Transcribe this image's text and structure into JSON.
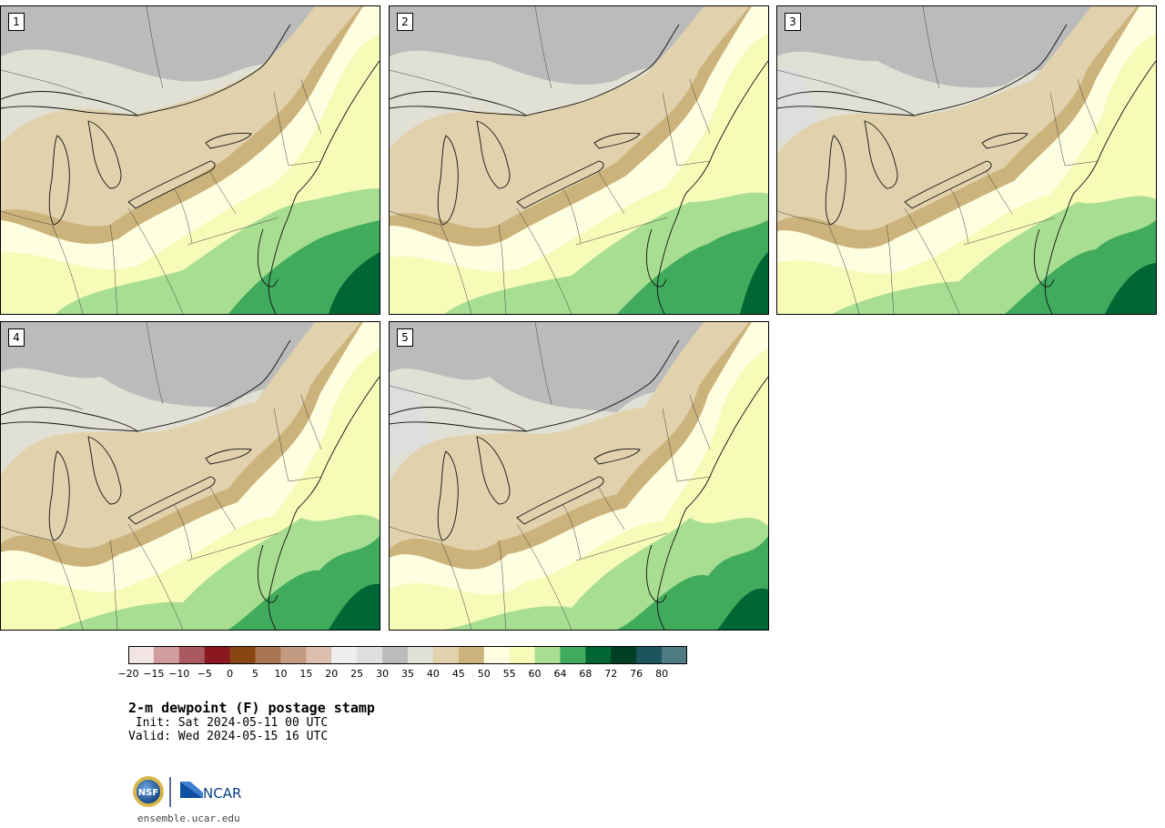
{
  "panels": [
    {
      "label": "1",
      "variant": 0
    },
    {
      "label": "2",
      "variant": 1
    },
    {
      "label": "3",
      "variant": 2
    },
    {
      "label": "4",
      "variant": 3
    },
    {
      "label": "5",
      "variant": 4
    }
  ],
  "colorbar": {
    "colors": [
      "#f2e4e4",
      "#d09c9e",
      "#a95a5e",
      "#8b1720",
      "#8a4612",
      "#a87653",
      "#c39b82",
      "#ddbfb0",
      "#efefef",
      "#dedede",
      "#bbbbbb",
      "#e1e0d4",
      "#e1d2ad",
      "#cbb37b",
      "#fefee0",
      "#f6fbb8",
      "#a8de91",
      "#41ab5d",
      "#006634",
      "#003f23",
      "#1c555e",
      "#4f7c82"
    ],
    "ticks": [
      "−20",
      "−15",
      "−10",
      "−5",
      "0",
      "5",
      "10",
      "15",
      "20",
      "25",
      "30",
      "35",
      "40",
      "45",
      "50",
      "55",
      "60",
      "64",
      "68",
      "72",
      "76",
      "80"
    ]
  },
  "title": "2-m dewpoint (F) postage stamp",
  "init": " Init: Sat 2024-05-11 00 UTC",
  "valid": "Valid: Wed 2024-05-15 16 UTC",
  "logos": {
    "nsf": "NSF",
    "ncar": "NCAR"
  },
  "url": "ensemble.ucar.edu"
}
